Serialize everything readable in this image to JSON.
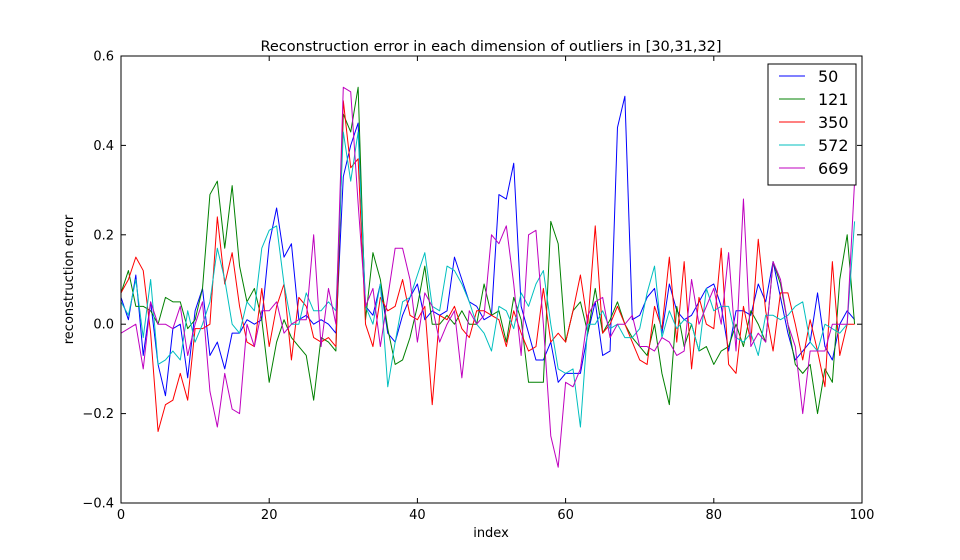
{
  "chart_data": {
    "type": "line",
    "title": "Reconstruction error in each dimension of outliers in [30,31,32]",
    "xlabel": "index",
    "ylabel": "reconstruction error",
    "xlim": [
      0,
      100
    ],
    "ylim": [
      -0.4,
      0.6
    ],
    "xticks": [
      0,
      20,
      40,
      60,
      80,
      100
    ],
    "xtick_labels": [
      "0",
      "20",
      "40",
      "60",
      "80",
      "100"
    ],
    "yticks": [
      -0.4,
      -0.2,
      0.0,
      0.2,
      0.4,
      0.6
    ],
    "ytick_labels": [
      "−0.4",
      "−0.2",
      "0.0",
      "0.2",
      "0.4",
      "0.6"
    ],
    "grid": false,
    "legend_position": "top-right",
    "series": [
      {
        "name": "50",
        "color": "#0000ff",
        "values": [
          0.06,
          0.01,
          0.11,
          -0.07,
          0.05,
          -0.09,
          -0.16,
          -0.01,
          0.0,
          -0.12,
          0.03,
          0.08,
          -0.07,
          -0.04,
          -0.1,
          -0.02,
          -0.02,
          0.01,
          0.0,
          0.01,
          0.18,
          0.26,
          0.15,
          0.18,
          0.01,
          0.02,
          0.0,
          0.01,
          0.0,
          -0.02,
          0.33,
          0.4,
          0.45,
          0.04,
          0.02,
          0.09,
          -0.02,
          -0.04,
          0.02,
          0.06,
          0.09,
          0.01,
          0.03,
          0.02,
          0.03,
          0.15,
          0.1,
          0.05,
          0.04,
          0.01,
          0.02,
          0.29,
          0.28,
          0.36,
          0.04,
          -0.02,
          -0.08,
          -0.08,
          -0.04,
          -0.13,
          -0.11,
          -0.11,
          -0.11,
          -0.02,
          0.05,
          -0.07,
          -0.06,
          0.44,
          0.51,
          0.01,
          0.02,
          0.06,
          0.08,
          -0.02,
          0.09,
          0.03,
          0.01,
          0.02,
          0.05,
          0.08,
          0.09,
          0.04,
          -0.06,
          0.03,
          0.03,
          0.02,
          0.09,
          0.05,
          0.14,
          0.06,
          -0.02,
          -0.08,
          -0.06,
          -0.04,
          0.07,
          -0.05,
          -0.08,
          0.0,
          0.03,
          0.01
        ]
      },
      {
        "name": "121",
        "color": "#008000",
        "values": [
          0.07,
          0.12,
          0.04,
          0.04,
          0.03,
          0.0,
          0.06,
          0.05,
          0.05,
          -0.01,
          0.01,
          0.08,
          0.29,
          0.32,
          0.17,
          0.31,
          0.13,
          0.05,
          0.08,
          0.01,
          -0.13,
          -0.04,
          0.01,
          -0.03,
          -0.05,
          -0.07,
          -0.17,
          -0.03,
          -0.04,
          -0.06,
          0.47,
          0.43,
          0.53,
          0.01,
          0.16,
          0.1,
          -0.01,
          -0.09,
          -0.08,
          -0.03,
          0.04,
          0.13,
          0.0,
          0.0,
          0.02,
          0.0,
          0.03,
          0.0,
          0.0,
          0.09,
          0.02,
          0.03,
          -0.04,
          0.06,
          0.01,
          -0.13,
          -0.13,
          -0.13,
          0.23,
          0.18,
          -0.04,
          0.03,
          0.05,
          -0.02,
          0.08,
          -0.02,
          0.01,
          0.05,
          0.0,
          -0.03,
          -0.05,
          -0.07,
          0.0,
          -0.11,
          -0.18,
          0.04,
          -0.05,
          0.0,
          -0.06,
          -0.05,
          -0.09,
          -0.06,
          -0.05,
          0.0,
          -0.05,
          0.03,
          0.0,
          -0.04,
          0.14,
          0.09,
          0.0,
          -0.09,
          -0.11,
          -0.09,
          -0.2,
          -0.1,
          -0.13,
          0.1,
          0.2,
          0.0
        ]
      },
      {
        "name": "350",
        "color": "#ff0000",
        "values": [
          0.07,
          0.1,
          0.15,
          0.12,
          -0.02,
          -0.24,
          -0.18,
          -0.17,
          -0.11,
          -0.17,
          -0.01,
          -0.01,
          0.0,
          0.24,
          0.09,
          0.16,
          0.04,
          -0.04,
          -0.05,
          0.08,
          -0.05,
          0.04,
          0.09,
          -0.08,
          0.06,
          0.04,
          -0.03,
          -0.04,
          -0.03,
          -0.05,
          0.5,
          0.35,
          0.37,
          0.0,
          -0.05,
          0.06,
          0.03,
          0.04,
          0.1,
          0.02,
          0.01,
          0.04,
          -0.18,
          0.02,
          0.01,
          0.04,
          -0.01,
          -0.03,
          0.03,
          0.03,
          0.02,
          0.01,
          -0.05,
          0.03,
          -0.02,
          -0.06,
          -0.05,
          0.08,
          -0.04,
          -0.02,
          -0.04,
          0.03,
          0.11,
          0.0,
          0.22,
          -0.02,
          0.0,
          0.04,
          0.0,
          -0.04,
          -0.08,
          -0.09,
          0.04,
          -0.01,
          0.15,
          -0.04,
          0.14,
          -0.1,
          0.06,
          0.0,
          -0.01,
          0.17,
          -0.09,
          -0.11,
          0.04,
          -0.04,
          0.19,
          0.03,
          -0.06,
          0.07,
          0.07,
          0.0,
          -0.08,
          0.01,
          -0.06,
          -0.14,
          0.14,
          -0.07,
          0.0,
          0.0
        ]
      },
      {
        "name": "572",
        "color": "#00bfbf",
        "values": [
          0.05,
          0.02,
          0.1,
          -0.03,
          0.1,
          -0.09,
          -0.08,
          -0.06,
          -0.08,
          0.03,
          -0.04,
          0.0,
          0.05,
          0.17,
          0.1,
          0.0,
          -0.02,
          0.05,
          0.03,
          0.17,
          0.21,
          0.22,
          0.09,
          0.0,
          0.0,
          0.07,
          0.03,
          0.03,
          0.05,
          0.03,
          0.43,
          0.32,
          0.43,
          0.04,
          0.0,
          0.09,
          -0.14,
          -0.04,
          0.05,
          0.06,
          0.11,
          0.16,
          0.04,
          0.03,
          0.13,
          0.12,
          0.09,
          0.05,
          0.0,
          -0.02,
          -0.06,
          0.04,
          0.03,
          -0.01,
          0.07,
          0.04,
          0.09,
          0.12,
          0.0,
          -0.1,
          -0.11,
          -0.1,
          -0.23,
          0.0,
          0.0,
          0.03,
          -0.01,
          0.0,
          -0.03,
          -0.03,
          -0.01,
          0.07,
          0.13,
          -0.03,
          0.03,
          -0.01,
          0.01,
          0.0,
          -0.06,
          0.08,
          0.03,
          0.04,
          0.04,
          -0.03,
          -0.04,
          -0.02,
          -0.07,
          0.02,
          0.02,
          0.01,
          0.02,
          0.04,
          0.05,
          -0.04,
          -0.06,
          0.0,
          -0.01,
          -0.02,
          0.0,
          0.23
        ]
      },
      {
        "name": "669",
        "color": "#bf00bf",
        "values": [
          -0.02,
          -0.01,
          0.0,
          -0.1,
          0.05,
          0.0,
          0.0,
          -0.01,
          0.04,
          -0.07,
          0.0,
          0.05,
          -0.15,
          -0.23,
          -0.11,
          -0.19,
          -0.2,
          0.0,
          -0.05,
          0.03,
          0.03,
          0.05,
          -0.02,
          0.0,
          0.01,
          0.01,
          0.2,
          -0.05,
          0.08,
          0.0,
          0.53,
          0.52,
          0.27,
          0.04,
          0.08,
          -0.05,
          0.06,
          0.17,
          0.17,
          0.1,
          -0.04,
          0.07,
          0.04,
          -0.04,
          0.0,
          0.03,
          -0.12,
          0.03,
          0.0,
          0.02,
          0.2,
          0.18,
          0.22,
          0.09,
          -0.07,
          0.2,
          0.21,
          0.0,
          -0.25,
          -0.32,
          -0.13,
          -0.14,
          -0.1,
          0.02,
          0.05,
          0.06,
          -0.03,
          0.0,
          0.0,
          0.02,
          -0.05,
          -0.05,
          -0.06,
          -0.03,
          -0.04,
          -0.07,
          -0.06,
          0.1,
          0.0,
          0.04,
          0.08,
          0.0,
          0.16,
          -0.06,
          0.28,
          -0.05,
          -0.02,
          -0.04,
          0.14,
          0.1,
          0.0,
          -0.05,
          -0.2,
          -0.06,
          -0.06,
          -0.06,
          0.0,
          0.0,
          0.0,
          0.32
        ]
      }
    ]
  }
}
